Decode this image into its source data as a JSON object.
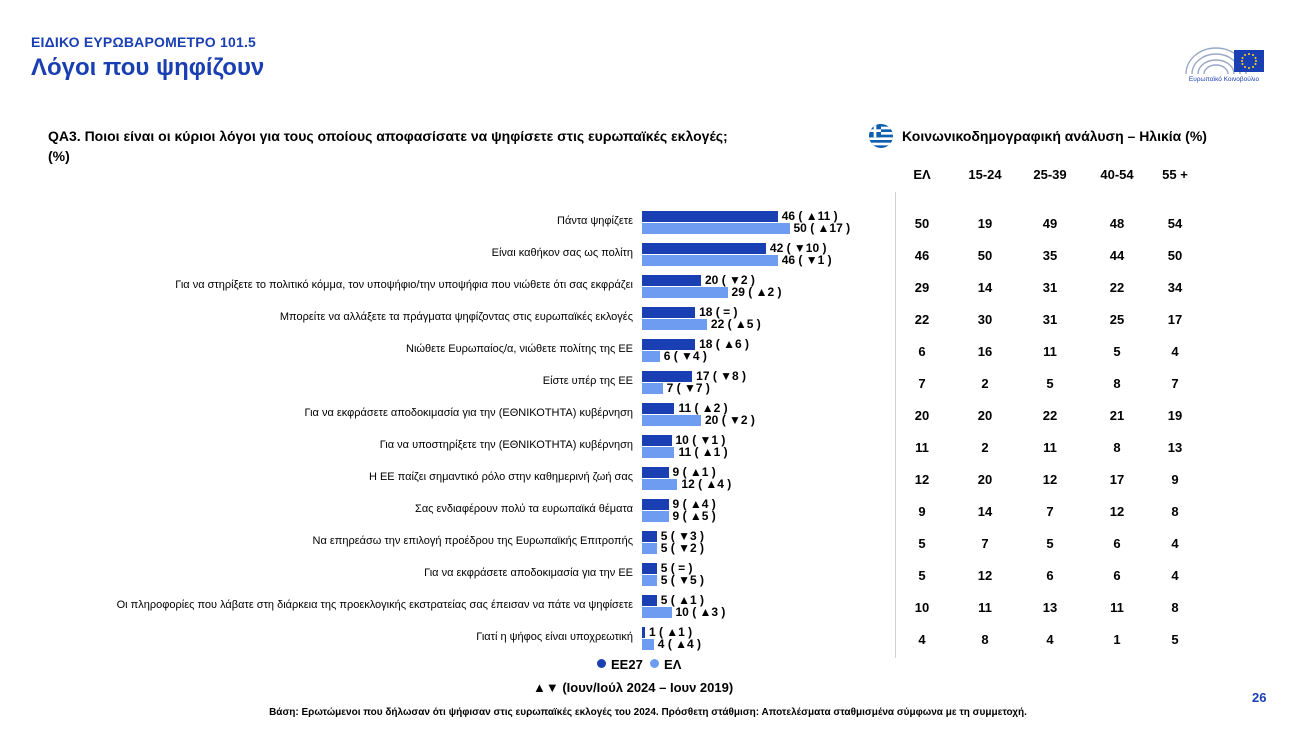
{
  "header": {
    "kicker": "ΕΙΔΙΚΟ ΕΥΡΩΒΑΡΟΜΕΤΡΟ 101.5",
    "title": "Λόγοι που ψηφίζουν",
    "logo_text": "Ευρωπαϊκό Κοινοβούλιο"
  },
  "question": "QA3. Ποιοι είναι οι κύριοι λόγοι για τους οποίους αποφασίσατε να ψηφίσετε στις ευρωπαϊκές εκλογές; (%)",
  "table": {
    "title": "Κοινωνικοδημογραφική ανάλυση – Ηλικία (%)",
    "columns": [
      "ΕΛ",
      "15-24",
      "25-39",
      "40-54",
      "55 +"
    ]
  },
  "legend": {
    "series1": "ΕΕ27",
    "series2": "ΕΛ",
    "trend_note": "▲▼ (Ιουν/Ιούλ 2024 – Ιουν 2019)"
  },
  "footnote": "Βάση: Ερωτώμενοι που δήλωσαν ότι ψήφισαν στις ευρωπαϊκές εκλογές του 2024. Πρόσθετη στάθμιση: Αποτελέσματα σταθμισμένα σύμφωνα με τη συμμετοχή.",
  "page_number": "26",
  "colors": {
    "eu27": "#1a3fb3",
    "el": "#6d9cf0",
    "accent": "#1a3fb3"
  },
  "chart_data": {
    "type": "bar",
    "orientation": "horizontal",
    "categories": [
      "Πάντα ψηφίζετε",
      "Είναι καθήκον σας ως πολίτη",
      "Για να στηρίξετε το πολιτικό κόμμα, τον υποψήφιο/την υποψήφια που νιώθετε ότι σας εκφράζει",
      "Μπορείτε να αλλάξετε τα πράγματα ψηφίζοντας στις ευρωπαϊκές εκλογές",
      "Νιώθετε Ευρωπαίος/α, νιώθετε πολίτης της ΕΕ",
      "Είστε υπέρ της ΕΕ",
      "Για να εκφράσετε αποδοκιμασία για την (ΕΘΝΙΚΟΤΗΤΑ) κυβέρνηση",
      "Για να υποστηρίξετε την (ΕΘΝΙΚΟΤΗΤΑ) κυβέρνηση",
      "Η ΕΕ παίζει σημαντικό ρόλο στην καθημερινή ζωή σας",
      "Σας ενδιαφέρουν πολύ τα ευρωπαϊκά θέματα",
      "Να επηρεάσω την επιλογή προέδρου της Ευρωπαϊκής Επιτροπής",
      "Για να εκφράσετε αποδοκιμασία για την ΕΕ",
      "Οι πληροφορίες που λάβατε στη διάρκεια της προεκλογικής εκστρατείας σας έπεισαν να πάτε να ψηφίσετε",
      "Γιατί η ψήφος είναι υποχρεωτική"
    ],
    "series": [
      {
        "name": "ΕΕ27",
        "values": [
          46,
          42,
          20,
          18,
          18,
          17,
          11,
          10,
          9,
          9,
          5,
          5,
          5,
          1
        ],
        "change_labels": [
          "( ▲11 )",
          "( ▼10 )",
          "( ▼2 )",
          "( = )",
          "( ▲6 )",
          "( ▼8 )",
          "( ▲2 )",
          "( ▼1 )",
          "( ▲1 )",
          "( ▲4 )",
          "( ▼3 )",
          "( = )",
          "( ▲1 )",
          "( ▲1 )"
        ]
      },
      {
        "name": "ΕΛ",
        "values": [
          50,
          46,
          29,
          22,
          6,
          7,
          20,
          11,
          12,
          9,
          5,
          5,
          10,
          4
        ],
        "change_labels": [
          "( ▲17 )",
          "( ▼1 )",
          "( ▲2 )",
          "( ▲5 )",
          "( ▼4 )",
          "( ▼7 )",
          "( ▼2 )",
          "( ▲1 )",
          "( ▲4 )",
          "( ▲5 )",
          "( ▼2 )",
          "( ▼5 )",
          "( ▲3 )",
          "( ▲4 )"
        ]
      }
    ],
    "age_table": [
      [
        50,
        19,
        49,
        48,
        54
      ],
      [
        46,
        50,
        35,
        44,
        50
      ],
      [
        29,
        14,
        31,
        22,
        34
      ],
      [
        22,
        30,
        31,
        25,
        17
      ],
      [
        6,
        16,
        11,
        5,
        4
      ],
      [
        7,
        2,
        5,
        8,
        7
      ],
      [
        20,
        20,
        22,
        21,
        19
      ],
      [
        11,
        2,
        11,
        8,
        13
      ],
      [
        12,
        20,
        12,
        17,
        9
      ],
      [
        9,
        14,
        7,
        12,
        8
      ],
      [
        5,
        7,
        5,
        6,
        4
      ],
      [
        5,
        12,
        6,
        6,
        4
      ],
      [
        10,
        11,
        13,
        11,
        8
      ],
      [
        4,
        8,
        4,
        1,
        5
      ]
    ],
    "xlim": [
      0,
      100
    ]
  }
}
